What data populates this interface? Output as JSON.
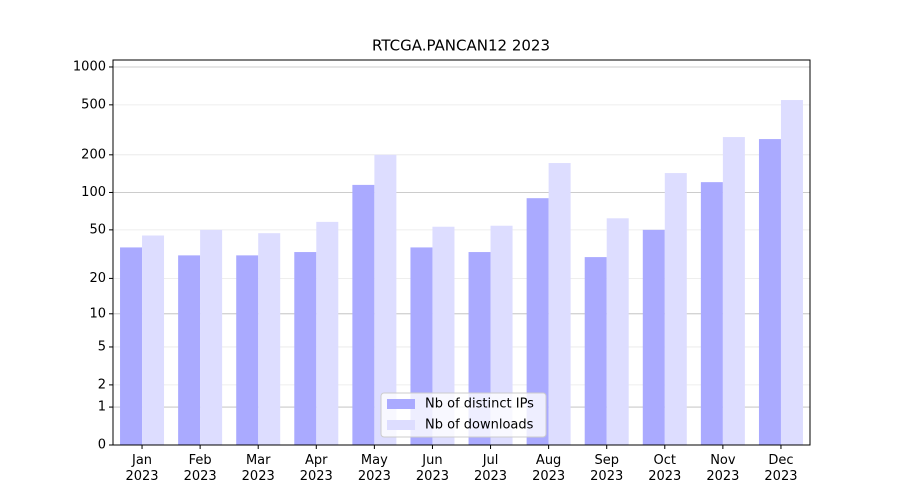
{
  "chart_data": {
    "type": "bar",
    "title": "RTCGA.PANCAN12 2023",
    "categories": [
      "Jan\n2023",
      "Feb\n2023",
      "Mar\n2023",
      "Apr\n2023",
      "May\n2023",
      "Jun\n2023",
      "Jul\n2023",
      "Aug\n2023",
      "Sep\n2023",
      "Oct\n2023",
      "Nov\n2023",
      "Dec\n2023"
    ],
    "series": [
      {
        "name": "Nb of distinct IPs",
        "color": "#aaaaff",
        "values": [
          36,
          31,
          31,
          33,
          115,
          36,
          33,
          90,
          30,
          50,
          121,
          267
        ]
      },
      {
        "name": "Nb of downloads",
        "color": "#ddddff",
        "values": [
          45,
          50,
          47,
          58,
          200,
          53,
          54,
          172,
          62,
          143,
          277,
          546
        ]
      }
    ],
    "yscale": "log1p",
    "ylim": [
      0,
      1136
    ],
    "yticks": [
      0,
      1,
      2,
      5,
      10,
      20,
      50,
      100,
      200,
      500,
      1000
    ],
    "grid": true,
    "legend": "lower center"
  }
}
